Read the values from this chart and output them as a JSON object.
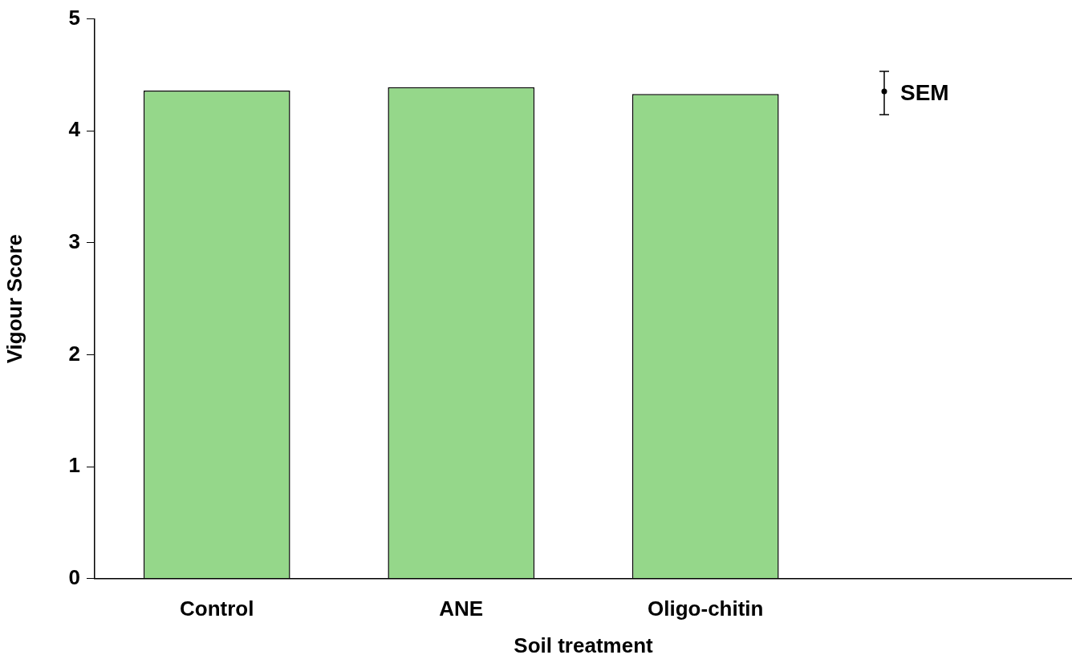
{
  "chart_data": {
    "type": "bar",
    "xlabel": "Soil treatment",
    "ylabel": "Vigour Score",
    "categories": [
      "Control",
      "ANE",
      "Oligo-chitin",
      null
    ],
    "values": [
      4.36,
      4.39,
      4.33,
      null
    ],
    "color": "#95d78a",
    "ylim": [
      0,
      5
    ],
    "yticks": [
      0,
      1,
      2,
      3,
      4,
      5
    ],
    "grid": false,
    "annotations": [
      "SEM"
    ]
  }
}
